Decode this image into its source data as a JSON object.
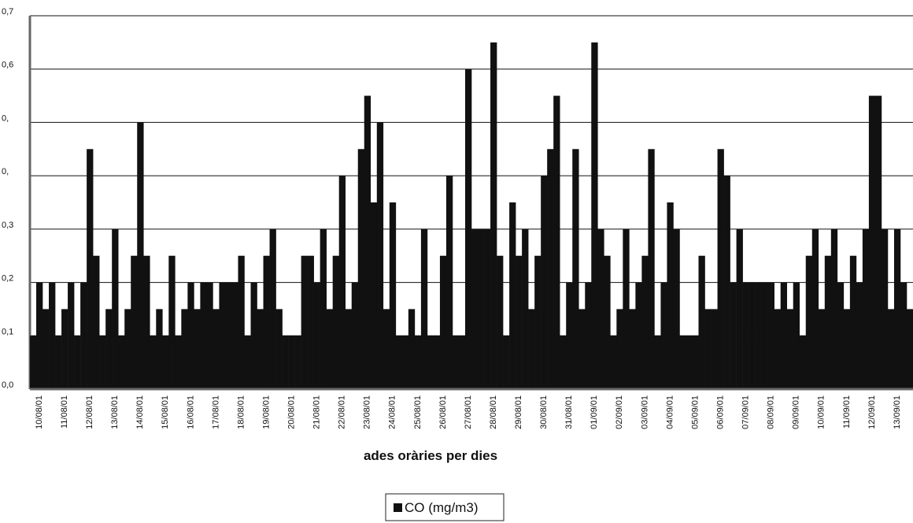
{
  "chart_data": {
    "type": "bar",
    "x_label": "ades   oràries  per dies",
    "categories": [
      "10/08/01",
      null,
      null,
      null,
      "11/08/01",
      null,
      null,
      null,
      "12/08/01",
      null,
      null,
      null,
      "13/08/01",
      null,
      null,
      null,
      "14/08/01",
      null,
      null,
      null,
      "15/08/01",
      null,
      null,
      null,
      "16/08/01",
      null,
      null,
      null,
      "17/08/01",
      null,
      null,
      null,
      "18/08/01",
      null,
      null,
      null,
      "19/08/01",
      null,
      null,
      null,
      "20/08/01",
      null,
      null,
      null,
      "21/08/01",
      null,
      null,
      null,
      "22/08/01",
      null,
      null,
      null,
      "23/08/01",
      null,
      null,
      null,
      "24/08/01",
      null,
      null,
      null,
      "25/08/01",
      null,
      null,
      null,
      "26/08/01",
      null,
      null,
      null,
      "27/08/01",
      null,
      null,
      null,
      "28/08/01",
      null,
      null,
      null,
      "29/08/01",
      null,
      null,
      null,
      "30/08/01",
      null,
      null,
      null,
      "31/08/01",
      null,
      null,
      null,
      "01/09/01",
      null,
      null,
      null,
      "02/09/01",
      null,
      null,
      null,
      "03/09/01",
      null,
      null,
      null,
      "04/09/01",
      null,
      null,
      null,
      "05/09/01",
      null,
      null,
      null,
      "06/09/01",
      null,
      null,
      null,
      "07/09/01",
      null,
      null,
      null,
      "08/09/01",
      null,
      null,
      null,
      "09/09/01",
      null,
      null,
      null,
      "10/09/01",
      null,
      null,
      null,
      "11/09/01",
      null,
      null,
      null,
      "12/09/01",
      null,
      null,
      null,
      "13/09/01",
      null,
      null,
      null
    ],
    "series": [
      {
        "name": "CO (mg/m3)",
        "color": "#111111",
        "values": [
          0.1,
          0.2,
          0.15,
          0.2,
          0.1,
          0.15,
          0.2,
          0.1,
          0.2,
          0.45,
          0.25,
          0.1,
          0.15,
          0.3,
          0.1,
          0.15,
          0.25,
          0.5,
          0.25,
          0.1,
          0.15,
          0.1,
          0.25,
          0.1,
          0.15,
          0.2,
          0.15,
          0.2,
          0.2,
          0.15,
          0.2,
          0.2,
          0.2,
          0.25,
          0.1,
          0.2,
          0.15,
          0.25,
          0.3,
          0.15,
          0.1,
          0.1,
          0.1,
          0.25,
          0.25,
          0.2,
          0.3,
          0.15,
          0.25,
          0.4,
          0.15,
          0.2,
          0.45,
          0.55,
          0.35,
          0.5,
          0.15,
          0.35,
          0.1,
          0.1,
          0.15,
          0.1,
          0.3,
          0.1,
          0.1,
          0.25,
          0.4,
          0.1,
          0.1,
          0.6,
          0.3,
          0.3,
          0.3,
          0.65,
          0.25,
          0.1,
          0.35,
          0.25,
          0.3,
          0.15,
          0.25,
          0.4,
          0.45,
          0.55,
          0.1,
          0.2,
          0.45,
          0.15,
          0.2,
          0.65,
          0.3,
          0.25,
          0.1,
          0.15,
          0.3,
          0.15,
          0.2,
          0.25,
          0.45,
          0.1,
          0.2,
          0.35,
          0.3,
          0.1,
          0.1,
          0.1,
          0.25,
          0.15,
          0.15,
          0.45,
          0.4,
          0.2,
          0.3,
          0.2,
          0.2,
          0.2,
          0.2,
          0.2,
          0.15,
          0.2,
          0.15,
          0.2,
          0.1,
          0.25,
          0.3,
          0.15,
          0.25,
          0.3,
          0.2,
          0.15,
          0.25,
          0.2,
          0.3,
          0.55,
          0.55,
          0.3,
          0.15,
          0.3,
          0.2,
          0.15
        ]
      }
    ],
    "ylim": [
      0,
      0.7
    ],
    "yticks": [
      {
        "value": 0,
        "label": "0,0"
      },
      {
        "value": 0.1,
        "label": "0,1"
      },
      {
        "value": 0.2,
        "label": "0,2"
      },
      {
        "value": 0.3,
        "label": "0,3"
      },
      {
        "value": 0.4,
        "label": "0,"
      },
      {
        "value": 0.5,
        "label": "0,"
      },
      {
        "value": 0.6,
        "label": "0,6"
      },
      {
        "value": 0.7,
        "label": "0,7"
      }
    ],
    "grid": true,
    "legend": "bottom"
  }
}
